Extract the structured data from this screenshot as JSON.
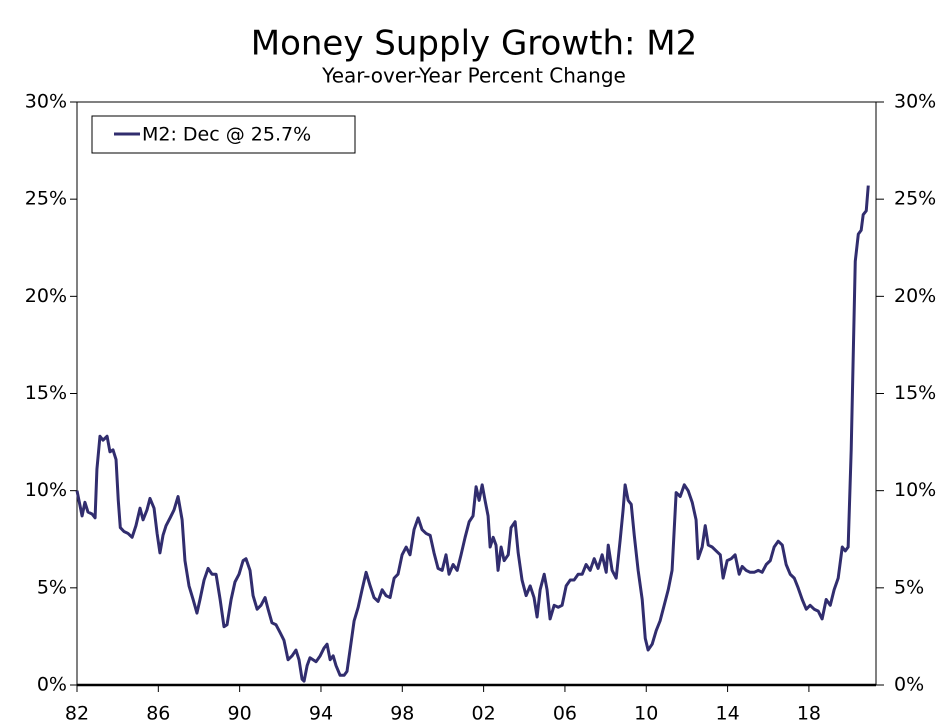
{
  "chart_data": {
    "type": "line",
    "title": "Money Supply Growth: M2",
    "subtitle": "Year-over-Year Percent Change",
    "x": [
      1982.0,
      1982.25,
      1982.39,
      1982.54,
      1982.74,
      1982.89,
      1982.98,
      1983.13,
      1983.28,
      1983.48,
      1983.62,
      1983.77,
      1983.92,
      1984.03,
      1984.13,
      1984.31,
      1984.51,
      1984.71,
      1984.9,
      1985.1,
      1985.25,
      1985.44,
      1985.59,
      1985.79,
      1985.94,
      1986.08,
      1986.23,
      1986.38,
      1986.58,
      1986.77,
      1986.97,
      1987.17,
      1987.31,
      1987.51,
      1987.71,
      1987.9,
      1988.05,
      1988.25,
      1988.45,
      1988.64,
      1988.84,
      1989.04,
      1989.23,
      1989.38,
      1989.58,
      1989.77,
      1989.97,
      1990.17,
      1990.31,
      1990.51,
      1990.66,
      1990.86,
      1991.05,
      1991.25,
      1991.4,
      1991.59,
      1991.79,
      1991.99,
      1992.18,
      1992.38,
      1992.58,
      1992.77,
      1992.92,
      1993.07,
      1993.17,
      1993.32,
      1993.46,
      1993.61,
      1993.76,
      1993.96,
      1994.15,
      1994.3,
      1994.45,
      1994.6,
      1994.74,
      1994.94,
      1995.14,
      1995.28,
      1995.43,
      1995.63,
      1995.83,
      1996.02,
      1996.22,
      1996.42,
      1996.61,
      1996.81,
      1997.01,
      1997.2,
      1997.4,
      1997.6,
      1997.79,
      1997.99,
      1998.19,
      1998.38,
      1998.58,
      1998.78,
      1998.97,
      1999.17,
      1999.37,
      1999.56,
      1999.76,
      1999.96,
      2000.15,
      2000.3,
      2000.5,
      2000.7,
      2000.89,
      2001.09,
      2001.29,
      2001.48,
      2001.63,
      2001.78,
      2001.93,
      2002.07,
      2002.22,
      2002.32,
      2002.47,
      2002.61,
      2002.71,
      2002.86,
      2003.01,
      2003.21,
      2003.35,
      2003.55,
      2003.7,
      2003.89,
      2004.09,
      2004.29,
      2004.48,
      2004.63,
      2004.78,
      2004.98,
      2005.12,
      2005.27,
      2005.47,
      2005.67,
      2005.86,
      2006.06,
      2006.26,
      2006.45,
      2006.65,
      2006.85,
      2007.04,
      2007.24,
      2007.44,
      2007.63,
      2007.83,
      2008.03,
      2008.13,
      2008.32,
      2008.52,
      2008.72,
      2008.86,
      2008.96,
      2009.11,
      2009.26,
      2009.41,
      2009.6,
      2009.8,
      2009.95,
      2010.09,
      2010.29,
      2010.49,
      2010.68,
      2010.88,
      2011.08,
      2011.27,
      2011.47,
      2011.67,
      2011.87,
      2012.06,
      2012.26,
      2012.45,
      2012.55,
      2012.75,
      2012.9,
      2013.05,
      2013.24,
      2013.44,
      2013.64,
      2013.78,
      2013.98,
      2014.18,
      2014.37,
      2014.57,
      2014.72,
      2014.91,
      2015.11,
      2015.31,
      2015.51,
      2015.7,
      2015.9,
      2016.1,
      2016.29,
      2016.49,
      2016.69,
      2016.88,
      2017.08,
      2017.28,
      2017.47,
      2017.67,
      2017.87,
      2018.06,
      2018.26,
      2018.46,
      2018.65,
      2018.85,
      2019.05,
      2019.24,
      2019.44,
      2019.64,
      2019.79,
      2019.93,
      2020.08,
      2020.28,
      2020.43,
      2020.57,
      2020.67,
      2020.82,
      2020.92
    ],
    "series": [
      {
        "name": "M2: Dec @ 25.7%",
        "color": "#312d6e",
        "values": [
          10.0,
          8.7,
          9.4,
          8.9,
          8.8,
          8.6,
          11.1,
          12.8,
          12.6,
          12.8,
          12.0,
          12.1,
          11.6,
          9.5,
          8.1,
          7.9,
          7.8,
          7.6,
          8.2,
          9.1,
          8.5,
          9.0,
          9.6,
          9.1,
          7.8,
          6.8,
          7.7,
          8.2,
          8.6,
          9.0,
          9.7,
          8.5,
          6.4,
          5.1,
          4.4,
          3.7,
          4.4,
          5.4,
          6.0,
          5.7,
          5.7,
          4.4,
          3.0,
          3.1,
          4.4,
          5.3,
          5.7,
          6.4,
          6.5,
          5.9,
          4.6,
          3.9,
          4.1,
          4.5,
          3.9,
          3.2,
          3.1,
          2.7,
          2.3,
          1.3,
          1.5,
          1.8,
          1.3,
          0.3,
          0.2,
          1.0,
          1.4,
          1.3,
          1.2,
          1.5,
          1.9,
          2.1,
          1.3,
          1.5,
          1.0,
          0.5,
          0.5,
          0.7,
          1.8,
          3.3,
          4.0,
          4.9,
          5.8,
          5.1,
          4.5,
          4.3,
          4.9,
          4.6,
          4.5,
          5.5,
          5.7,
          6.7,
          7.1,
          6.7,
          8.0,
          8.6,
          8.0,
          7.8,
          7.7,
          6.8,
          6.0,
          5.9,
          6.7,
          5.7,
          6.2,
          5.9,
          6.7,
          7.6,
          8.4,
          8.7,
          10.2,
          9.5,
          10.3,
          9.5,
          8.7,
          7.1,
          7.6,
          7.2,
          5.9,
          7.1,
          6.4,
          6.7,
          8.1,
          8.4,
          6.8,
          5.4,
          4.6,
          5.1,
          4.5,
          3.5,
          4.9,
          5.7,
          4.9,
          3.4,
          4.1,
          4.0,
          4.1,
          5.1,
          5.4,
          5.4,
          5.7,
          5.7,
          6.2,
          5.9,
          6.5,
          6.0,
          6.7,
          5.8,
          7.2,
          5.9,
          5.5,
          7.5,
          9.0,
          10.3,
          9.5,
          9.3,
          7.7,
          5.9,
          4.4,
          2.4,
          1.8,
          2.1,
          2.8,
          3.3,
          4.1,
          4.9,
          5.9,
          9.9,
          9.7,
          10.3,
          10.0,
          9.4,
          8.5,
          6.5,
          7.1,
          8.2,
          7.2,
          7.1,
          6.9,
          6.7,
          5.5,
          6.4,
          6.5,
          6.7,
          5.7,
          6.1,
          5.9,
          5.8,
          5.8,
          5.9,
          5.8,
          6.2,
          6.4,
          7.1,
          7.4,
          7.2,
          6.2,
          5.7,
          5.5,
          5.0,
          4.4,
          3.9,
          4.1,
          3.9,
          3.8,
          3.4,
          4.4,
          4.1,
          4.9,
          5.5,
          7.1,
          6.9,
          7.1,
          12.1,
          21.8,
          23.2,
          23.4,
          24.2,
          24.4,
          25.7
        ]
      }
    ],
    "xlim": [
      1982,
      2021.3
    ],
    "xticks": [
      {
        "value": 1982,
        "label": "82"
      },
      {
        "value": 1986,
        "label": "86"
      },
      {
        "value": 1990,
        "label": "90"
      },
      {
        "value": 1994,
        "label": "94"
      },
      {
        "value": 1998,
        "label": "98"
      },
      {
        "value": 2002,
        "label": "02"
      },
      {
        "value": 2006,
        "label": "06"
      },
      {
        "value": 2010,
        "label": "10"
      },
      {
        "value": 2014,
        "label": "14"
      },
      {
        "value": 2018,
        "label": "18"
      }
    ],
    "ylim": [
      0,
      30
    ],
    "yticks": [
      {
        "value": 0,
        "label": "0%"
      },
      {
        "value": 5,
        "label": "5%"
      },
      {
        "value": 10,
        "label": "10%"
      },
      {
        "value": 15,
        "label": "15%"
      },
      {
        "value": 20,
        "label": "20%"
      },
      {
        "value": 25,
        "label": "25%"
      },
      {
        "value": 30,
        "label": "30%"
      }
    ],
    "y2lim": [
      0,
      30
    ],
    "y2ticks": [
      {
        "value": 0,
        "label": "0%"
      },
      {
        "value": 5,
        "label": "5%"
      },
      {
        "value": 10,
        "label": "10%"
      },
      {
        "value": 15,
        "label": "15%"
      },
      {
        "value": 20,
        "label": "20%"
      },
      {
        "value": 25,
        "label": "25%"
      },
      {
        "value": 30,
        "label": "30%"
      }
    ],
    "legend": "upper left",
    "grid": false
  }
}
